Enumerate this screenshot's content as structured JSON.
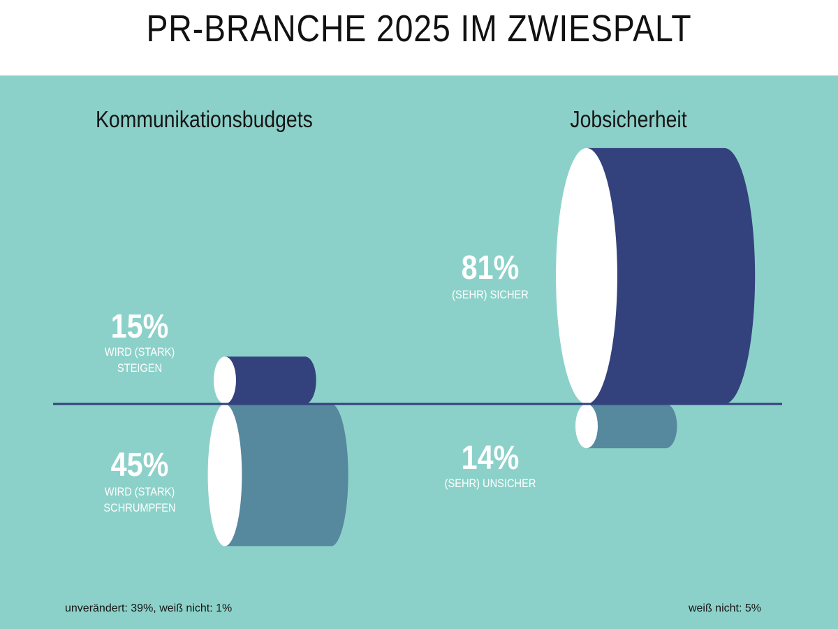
{
  "title": "PR-BRANCHE 2025 IM ZWIESPALT",
  "colors": {
    "background": "#8cd1c9",
    "positive": "#33417c",
    "negative": "#56889e",
    "face": "#ffffff",
    "baseline": "#33417c"
  },
  "chart_data": [
    {
      "type": "bar",
      "title": "Kommunikationsbudgets",
      "categories": [
        "WIRD (STARK) STEIGEN",
        "WIRD (STARK) SCHRUMPFEN"
      ],
      "values": [
        15,
        45
      ],
      "value_labels": [
        "15%",
        "45%"
      ],
      "labels": [
        "WIRD (STARK)\nSTEIGEN",
        "WIRD (STARK)\nSCHRUMPFEN"
      ],
      "note": "unverändert: 39%, weiß nicht: 1%"
    },
    {
      "type": "bar",
      "title": "Jobsicherheit",
      "categories": [
        "(SEHR) SICHER",
        "(SEHR) UNSICHER"
      ],
      "values": [
        81,
        14
      ],
      "value_labels": [
        "81%",
        "14%"
      ],
      "labels": [
        "(SEHR) SICHER",
        "(SEHR) UNSICHER"
      ],
      "note": "weiß nicht: 5%"
    }
  ]
}
